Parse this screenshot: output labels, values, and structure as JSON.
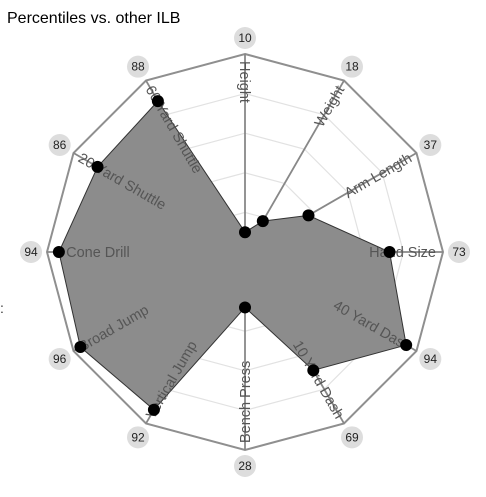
{
  "chart_data": {
    "type": "radar",
    "title": "Percentiles vs. other ILB",
    "axes": [
      "Height",
      "Weight",
      "Arm Length",
      "Hand Size",
      "40 Yard Dash",
      "10 Yard Dash",
      "Bench Press",
      "Vertical Jump",
      "Broad Jump",
      "3 Cone Drill",
      "20 Yard Shuttle",
      "60 Yard Shuttle"
    ],
    "values": [
      10,
      18,
      37,
      73,
      94,
      69,
      28,
      92,
      96,
      94,
      86,
      88
    ],
    "range": [
      0,
      100
    ],
    "rings": 5,
    "colors": {
      "fill": "#8c8c8c",
      "outline": "#333333",
      "point": "#000000",
      "outer_frame": "#8f8f8f",
      "inner_ring": "#e2e2e2",
      "spoke": "#888888",
      "badge": "#dddddd"
    }
  },
  "stray_mark": ":"
}
